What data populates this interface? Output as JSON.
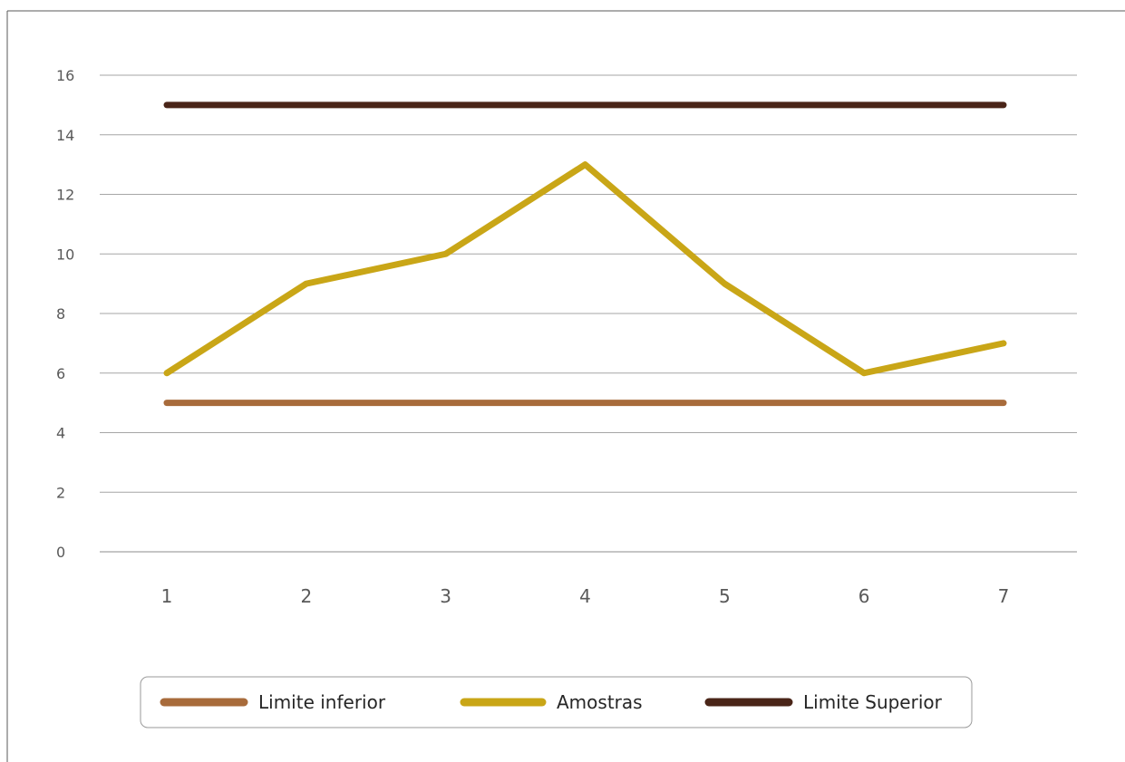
{
  "chart_data": {
    "type": "line",
    "title": "",
    "xlabel": "",
    "ylabel": "",
    "categories": [
      "1",
      "2",
      "3",
      "4",
      "5",
      "6",
      "7"
    ],
    "ylim": [
      0,
      16
    ],
    "yticks": [
      0,
      2,
      4,
      6,
      8,
      10,
      12,
      14,
      16
    ],
    "grid": "horizontal",
    "legend_position": "bottom",
    "series": [
      {
        "name": "Limite inferior",
        "color": "#a86b3b",
        "values": [
          5,
          5,
          5,
          5,
          5,
          5,
          5
        ]
      },
      {
        "name": "Amostras",
        "color": "#c9a617",
        "values": [
          6,
          9,
          10,
          13,
          9,
          6,
          7
        ]
      },
      {
        "name": "Limite Superior",
        "color": "#4a2518",
        "values": [
          15,
          15,
          15,
          15,
          15,
          15,
          15
        ]
      }
    ]
  }
}
